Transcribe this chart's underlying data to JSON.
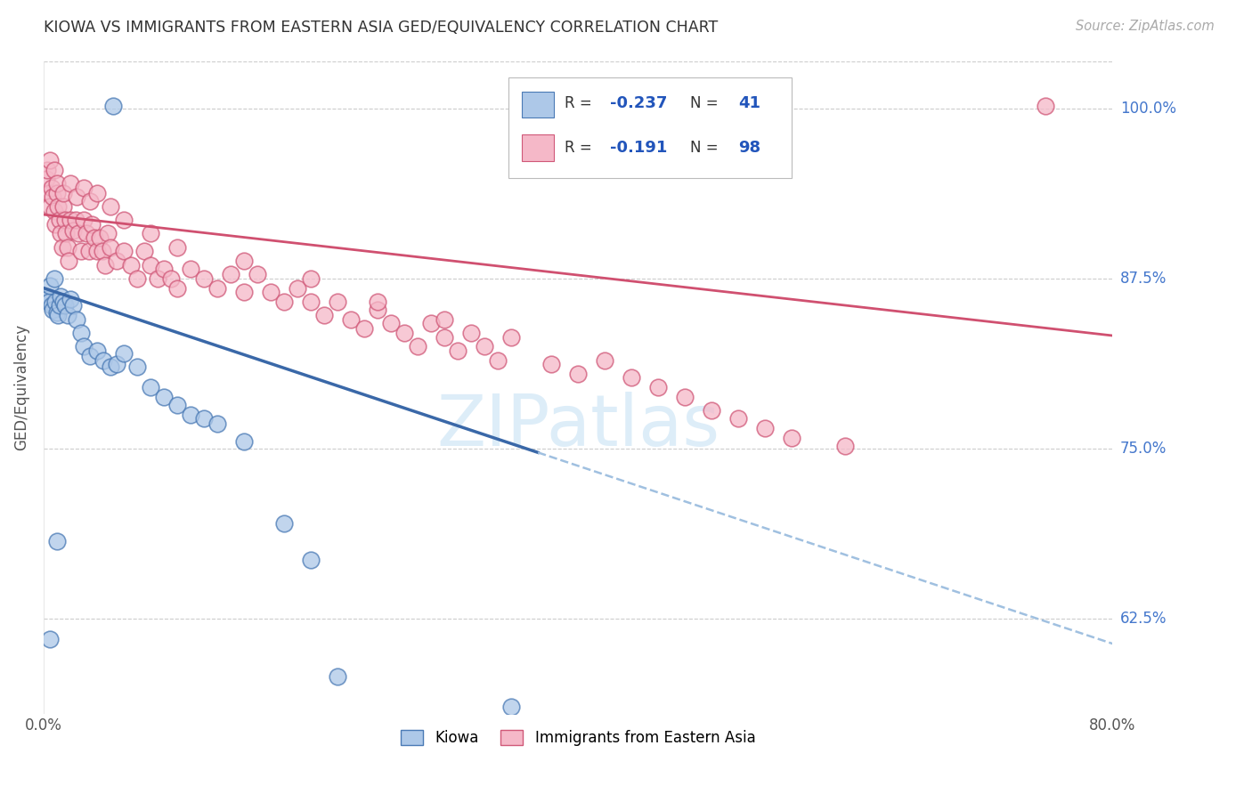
{
  "title": "KIOWA VS IMMIGRANTS FROM EASTERN ASIA GED/EQUIVALENCY CORRELATION CHART",
  "source": "Source: ZipAtlas.com",
  "ylabel": "GED/Equivalency",
  "ytick_labels": [
    "100.0%",
    "87.5%",
    "75.0%",
    "62.5%"
  ],
  "ytick_values": [
    1.0,
    0.875,
    0.75,
    0.625
  ],
  "legend_label1": "Kiowa",
  "legend_label2": "Immigrants from Eastern Asia",
  "R1": -0.237,
  "N1": 41,
  "R2": -0.191,
  "N2": 98,
  "color_kiowa_fill": "#adc8e8",
  "color_kiowa_edge": "#4a7ab5",
  "color_ea_fill": "#f5b8c8",
  "color_ea_edge": "#d05878",
  "color_line_kiowa": "#3a68a8",
  "color_line_ea": "#d05070",
  "color_dashed_kiowa": "#a0c0e0",
  "xmin": 0.0,
  "xmax": 0.8,
  "ymin": 0.555,
  "ymax": 1.035,
  "background_color": "#ffffff",
  "grid_color": "#cccccc",
  "watermark": "ZIPatlas",
  "kiowa_line_x0": 0.0,
  "kiowa_line_y0": 0.868,
  "kiowa_line_x1": 0.37,
  "kiowa_line_y1": 0.747,
  "kiowa_line_solid_end": 0.37,
  "ea_line_x0": 0.0,
  "ea_line_y0": 0.922,
  "ea_line_x1": 0.8,
  "ea_line_y1": 0.833,
  "kiowa_x": [
    0.002,
    0.003,
    0.004,
    0.005,
    0.006,
    0.007,
    0.008,
    0.009,
    0.01,
    0.011,
    0.012,
    0.013,
    0.015,
    0.016,
    0.018,
    0.02,
    0.022,
    0.025,
    0.028,
    0.03,
    0.035,
    0.04,
    0.045,
    0.05,
    0.055,
    0.06,
    0.07,
    0.08,
    0.09,
    0.1,
    0.11,
    0.12,
    0.13,
    0.15,
    0.18,
    0.2,
    0.052,
    0.01,
    0.005,
    0.22,
    0.35
  ],
  "kiowa_y": [
    0.862,
    0.86,
    0.858,
    0.87,
    0.855,
    0.852,
    0.875,
    0.858,
    0.85,
    0.848,
    0.855,
    0.862,
    0.858,
    0.855,
    0.848,
    0.86,
    0.855,
    0.845,
    0.835,
    0.825,
    0.818,
    0.822,
    0.815,
    0.81,
    0.812,
    0.82,
    0.81,
    0.795,
    0.788,
    0.782,
    0.775,
    0.772,
    0.768,
    0.755,
    0.695,
    0.668,
    1.002,
    0.682,
    0.61,
    0.582,
    0.56
  ],
  "ea_x": [
    0.002,
    0.003,
    0.004,
    0.005,
    0.006,
    0.007,
    0.008,
    0.009,
    0.01,
    0.011,
    0.012,
    0.013,
    0.014,
    0.015,
    0.016,
    0.017,
    0.018,
    0.019,
    0.02,
    0.022,
    0.024,
    0.026,
    0.028,
    0.03,
    0.032,
    0.034,
    0.036,
    0.038,
    0.04,
    0.042,
    0.044,
    0.046,
    0.048,
    0.05,
    0.055,
    0.06,
    0.065,
    0.07,
    0.075,
    0.08,
    0.085,
    0.09,
    0.095,
    0.1,
    0.11,
    0.12,
    0.13,
    0.14,
    0.15,
    0.16,
    0.17,
    0.18,
    0.19,
    0.2,
    0.21,
    0.22,
    0.23,
    0.24,
    0.25,
    0.26,
    0.27,
    0.28,
    0.29,
    0.3,
    0.31,
    0.32,
    0.33,
    0.34,
    0.35,
    0.38,
    0.4,
    0.42,
    0.44,
    0.46,
    0.48,
    0.5,
    0.52,
    0.54,
    0.56,
    0.6,
    0.005,
    0.008,
    0.01,
    0.015,
    0.02,
    0.025,
    0.03,
    0.035,
    0.04,
    0.05,
    0.06,
    0.08,
    0.1,
    0.15,
    0.2,
    0.25,
    0.3,
    0.75
  ],
  "ea_y": [
    0.948,
    0.955,
    0.938,
    0.928,
    0.942,
    0.935,
    0.925,
    0.915,
    0.938,
    0.928,
    0.918,
    0.908,
    0.898,
    0.928,
    0.918,
    0.908,
    0.898,
    0.888,
    0.918,
    0.91,
    0.918,
    0.908,
    0.895,
    0.918,
    0.908,
    0.895,
    0.915,
    0.905,
    0.895,
    0.905,
    0.895,
    0.885,
    0.908,
    0.898,
    0.888,
    0.895,
    0.885,
    0.875,
    0.895,
    0.885,
    0.875,
    0.882,
    0.875,
    0.868,
    0.882,
    0.875,
    0.868,
    0.878,
    0.865,
    0.878,
    0.865,
    0.858,
    0.868,
    0.858,
    0.848,
    0.858,
    0.845,
    0.838,
    0.852,
    0.842,
    0.835,
    0.825,
    0.842,
    0.832,
    0.822,
    0.835,
    0.825,
    0.815,
    0.832,
    0.812,
    0.805,
    0.815,
    0.802,
    0.795,
    0.788,
    0.778,
    0.772,
    0.765,
    0.758,
    0.752,
    0.962,
    0.955,
    0.945,
    0.938,
    0.945,
    0.935,
    0.942,
    0.932,
    0.938,
    0.928,
    0.918,
    0.908,
    0.898,
    0.888,
    0.875,
    0.858,
    0.845,
    1.002
  ]
}
